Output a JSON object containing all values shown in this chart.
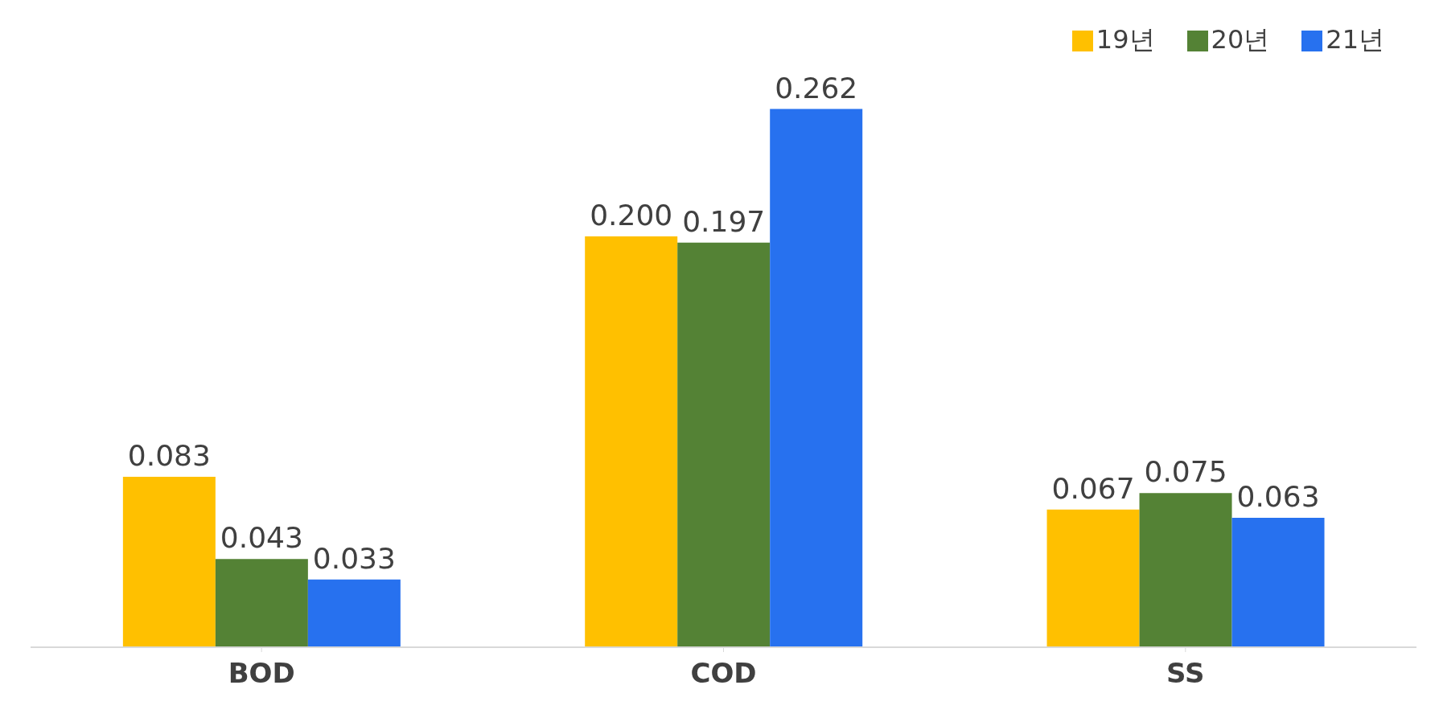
{
  "chart_data": {
    "type": "bar",
    "categories": [
      "BOD",
      "COD",
      "SS"
    ],
    "series": [
      {
        "name": "19년",
        "color": "#ffc000",
        "values": [
          0.083,
          0.2,
          0.067
        ],
        "value_labels": [
          "0.083",
          "0.200",
          "0.067"
        ]
      },
      {
        "name": "20년",
        "color": "#548235",
        "values": [
          0.043,
          0.197,
          0.075
        ],
        "value_labels": [
          "0.043",
          "0.197",
          "0.075"
        ]
      },
      {
        "name": "21년",
        "color": "#2771ef",
        "values": [
          0.033,
          0.262,
          0.063
        ],
        "value_labels": [
          "0.033",
          "0.262",
          "0.063"
        ]
      }
    ],
    "legend": "top right"
  }
}
